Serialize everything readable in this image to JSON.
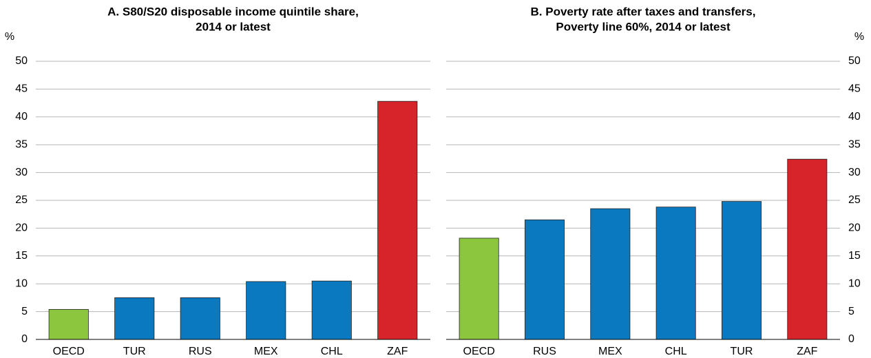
{
  "chart_data": [
    {
      "type": "bar",
      "title": [
        "A. S80/S20 disposable income quintile share,",
        "2014 or latest"
      ],
      "ylabel": "%",
      "categories": [
        "OECD",
        "TUR",
        "RUS",
        "MEX",
        "CHL",
        "ZAF"
      ],
      "values": [
        5.4,
        7.5,
        7.5,
        10.4,
        10.5,
        42.8
      ],
      "colors": [
        "#8cc63f",
        "#0a79bf",
        "#0a79bf",
        "#0a79bf",
        "#0a79bf",
        "#d7232a"
      ],
      "ylim": [
        0,
        50
      ],
      "yticks": [
        0,
        5,
        10,
        15,
        20,
        25,
        30,
        35,
        40,
        45,
        50
      ],
      "grid": true,
      "axis_side": "left"
    },
    {
      "type": "bar",
      "title": [
        "B. Poverty rate after taxes and transfers,",
        "Poverty line 60%, 2014 or latest"
      ],
      "ylabel": "%",
      "categories": [
        "OECD",
        "RUS",
        "MEX",
        "CHL",
        "TUR",
        "ZAF"
      ],
      "values": [
        18.2,
        21.5,
        23.5,
        23.8,
        24.8,
        32.4
      ],
      "colors": [
        "#8cc63f",
        "#0a79bf",
        "#0a79bf",
        "#0a79bf",
        "#0a79bf",
        "#d7232a"
      ],
      "ylim": [
        0,
        50
      ],
      "yticks": [
        0,
        5,
        10,
        15,
        20,
        25,
        30,
        35,
        40,
        45,
        50
      ],
      "grid": true,
      "axis_side": "right"
    }
  ]
}
